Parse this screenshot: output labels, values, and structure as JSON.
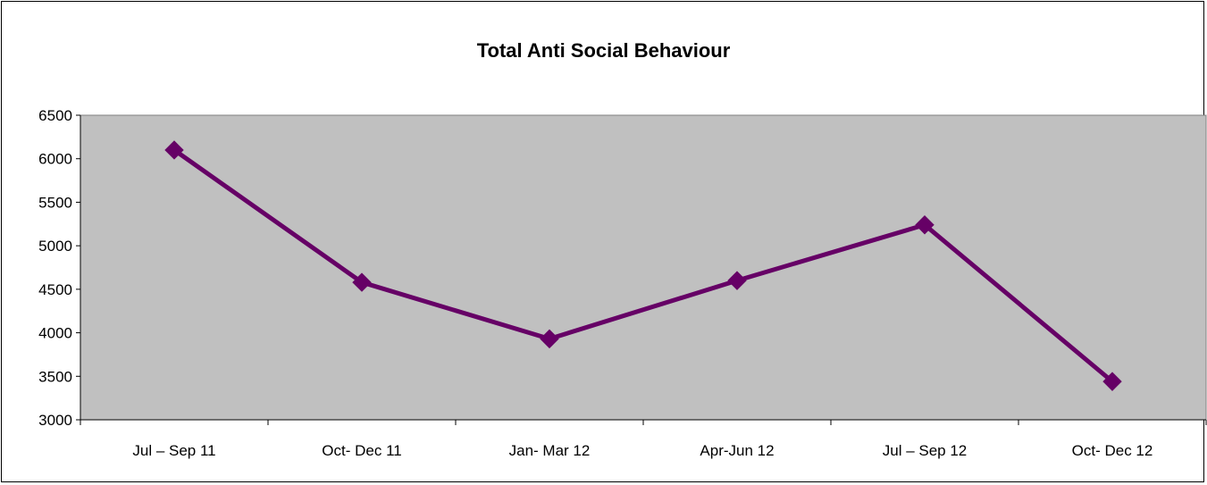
{
  "chart_data": {
    "type": "line",
    "title": "Total Anti Social Behaviour",
    "xlabel": "",
    "ylabel": "",
    "categories": [
      "Jul – Sep 11",
      "Oct- Dec 11",
      "Jan- Mar 12",
      "Apr-Jun 12",
      "Jul – Sep 12",
      "Oct- Dec 12"
    ],
    "series": [
      {
        "values": [
          6100,
          4580,
          3930,
          4600,
          5240,
          3440
        ]
      }
    ],
    "ylim": [
      3000,
      6500
    ],
    "yticks": [
      3000,
      3500,
      4000,
      4500,
      5000,
      5500,
      6000,
      6500
    ],
    "grid": false,
    "legend": "none",
    "colors": {
      "plot_background": "#c0c0c0",
      "line": "#660066",
      "marker": "#660066",
      "axis": "#808080"
    },
    "marker": "diamond-icon"
  }
}
